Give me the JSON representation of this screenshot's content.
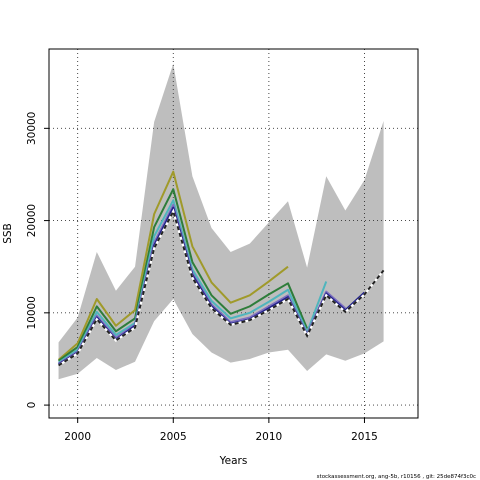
{
  "chart_data": {
    "type": "line",
    "title": "",
    "xlabel": "Years",
    "ylabel": "SSB",
    "xlim": [
      1998.5,
      2017.8
    ],
    "ylim": [
      -1400,
      38600
    ],
    "xticks": [
      2000,
      2005,
      2010,
      2015
    ],
    "yticks": [
      0,
      10000,
      20000,
      30000
    ],
    "grid": true,
    "footer": "stockassessment.org,  ang-5b,  r10156 ,  git:  25de874f3c0c",
    "band": {
      "x": [
        1999,
        2000,
        2001,
        2002,
        2003,
        2004,
        2005,
        2006,
        2007,
        2008,
        2009,
        2010,
        2011,
        2012,
        2013,
        2014,
        2015,
        2016
      ],
      "upper": [
        6800,
        9500,
        16600,
        12400,
        15000,
        30700,
        37000,
        24800,
        19200,
        16600,
        17500,
        19800,
        22100,
        14900,
        24800,
        21100,
        24400,
        30800
      ],
      "lower": [
        2800,
        3400,
        5100,
        3800,
        4700,
        9100,
        11500,
        7700,
        5700,
        4600,
        5000,
        5700,
        6000,
        3700,
        5500,
        4800,
        5600,
        6900
      ]
    },
    "series": [
      {
        "color": "#a09a2a",
        "x": [
          1999,
          2000,
          2001,
          2002,
          2003,
          2004,
          2005,
          2006,
          2007,
          2008,
          2009,
          2010,
          2011
        ],
        "values": [
          4900,
          6700,
          11500,
          8600,
          10300,
          20700,
          25300,
          17200,
          13300,
          11100,
          11900,
          13400,
          15000
        ]
      },
      {
        "color": "#2e7d3a",
        "x": [
          1999,
          2000,
          2001,
          2002,
          2003,
          2004,
          2005,
          2006,
          2007,
          2008,
          2009,
          2010,
          2011,
          2012
        ],
        "values": [
          4800,
          6300,
          10700,
          8000,
          9400,
          19300,
          23400,
          15500,
          11900,
          9900,
          10700,
          12000,
          13200,
          8300
        ]
      },
      {
        "color": "#4fb5bd",
        "x": [
          1999,
          2000,
          2001,
          2002,
          2003,
          2004,
          2005,
          2006,
          2007,
          2008,
          2009,
          2010,
          2011,
          2012,
          2013
        ],
        "values": [
          4600,
          6000,
          10100,
          7600,
          8900,
          18300,
          22200,
          14700,
          11300,
          9400,
          10000,
          11200,
          12500,
          7900,
          13400
        ]
      },
      {
        "color": "#7d6fc0",
        "x": [
          1999,
          2000,
          2001,
          2002,
          2003,
          2004,
          2005,
          2006,
          2007,
          2008,
          2009,
          2010,
          2011,
          2012,
          2013,
          2014
        ],
        "values": [
          4500,
          5800,
          9700,
          7300,
          8700,
          17600,
          21700,
          14300,
          10900,
          9000,
          9500,
          10700,
          11900,
          7700,
          12300,
          10500
        ]
      },
      {
        "color": "#222288",
        "x": [
          1999,
          2000,
          2001,
          2002,
          2003,
          2004,
          2005,
          2006,
          2007,
          2008,
          2009,
          2010,
          2011,
          2012,
          2013,
          2014,
          2015
        ],
        "values": [
          4400,
          5700,
          9500,
          7100,
          8600,
          17300,
          21400,
          14100,
          10700,
          8800,
          9300,
          10500,
          11700,
          7600,
          12100,
          10300,
          12200
        ]
      },
      {
        "color": "#222222",
        "dash": true,
        "x": [
          1999,
          2000,
          2001,
          2002,
          2003,
          2004,
          2005,
          2006,
          2007,
          2008,
          2009,
          2010,
          2011,
          2012,
          2013,
          2014,
          2015,
          2016
        ],
        "values": [
          4300,
          5600,
          9300,
          7000,
          8400,
          17000,
          21000,
          13800,
          10500,
          8700,
          9200,
          10300,
          11500,
          7500,
          11900,
          10100,
          12000,
          14600
        ]
      }
    ]
  }
}
